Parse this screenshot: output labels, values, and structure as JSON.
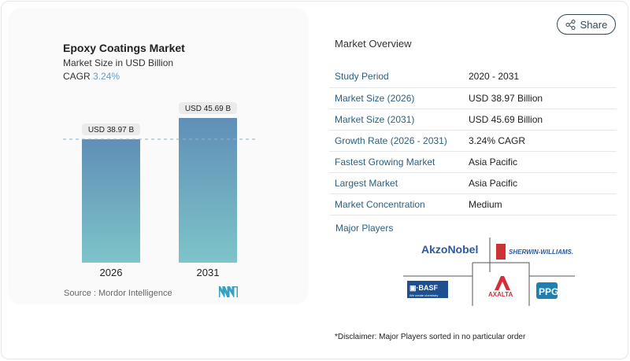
{
  "chart_data": {
    "type": "bar",
    "title": "Epoxy Coatings Market",
    "subtitle": "Market Size in USD Billion",
    "cagr_label": "CAGR",
    "cagr_value": "3.24%",
    "categories": [
      "2026",
      "2031"
    ],
    "values": [
      38.97,
      45.69
    ],
    "data_labels": [
      "USD 38.97 B",
      "USD 45.69 B"
    ],
    "reference_line": 38.97,
    "colors": {
      "bar_top": "#5f8fb7",
      "bar_bottom": "#7ec4c9"
    },
    "source": "Source :  Mordor Intelligence"
  },
  "share_label": "Share",
  "overview": {
    "title": "Market Overview",
    "rows": [
      {
        "key": "Study Period",
        "value": "2020 - 2031"
      },
      {
        "key": "Market Size (2026)",
        "value": "USD 38.97 Billion"
      },
      {
        "key": "Market Size (2031)",
        "value": "USD 45.69 Billion"
      },
      {
        "key": "Growth Rate (2026 - 2031)",
        "value": "3.24% CAGR"
      },
      {
        "key": "Fastest Growing Market",
        "value": "Asia Pacific"
      },
      {
        "key": "Largest Market",
        "value": "Asia Pacific"
      },
      {
        "key": "Market Concentration",
        "value": "Medium"
      }
    ]
  },
  "major_players": {
    "title": "Major Players",
    "logos": [
      "AkzoNobel",
      "SHERWIN-WILLIAMS.",
      "BASF",
      "We create chemistry",
      "AXALTA",
      "PPG"
    ]
  },
  "disclaimer": "*Disclaimer: Major Players sorted in no particular order"
}
